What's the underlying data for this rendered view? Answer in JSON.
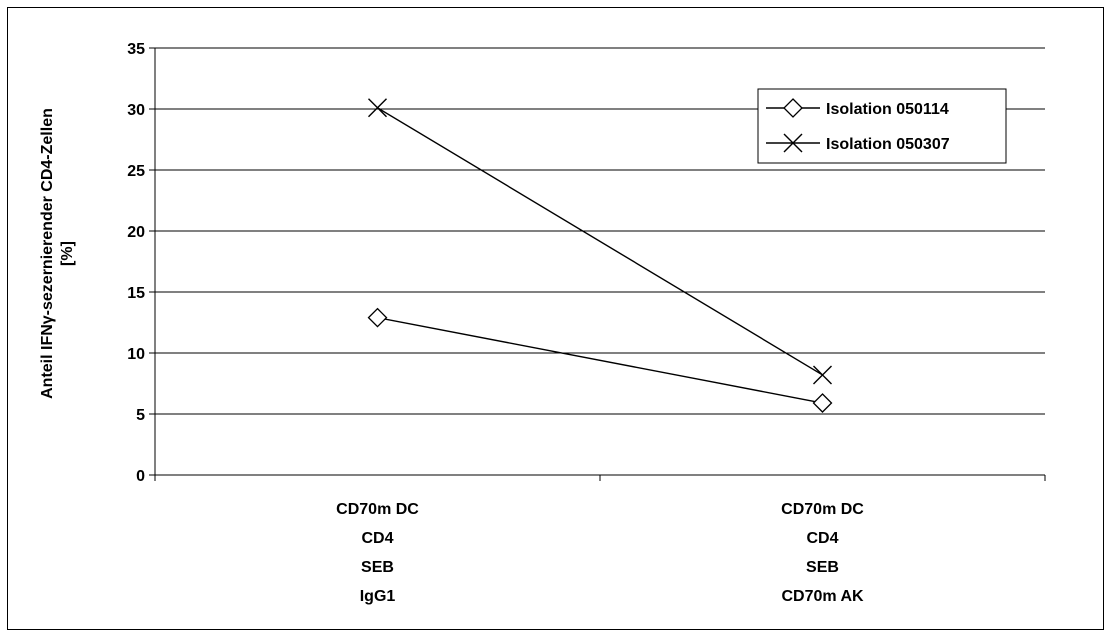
{
  "chart_data": {
    "type": "line",
    "categories": [
      [
        "CD70m DC",
        "CD4",
        "SEB",
        "IgG1"
      ],
      [
        "CD70m DC",
        "CD4",
        "SEB",
        "CD70m AK"
      ]
    ],
    "series": [
      {
        "name": "Isolation 050114",
        "marker": "diamond",
        "values": [
          12.9,
          5.9
        ]
      },
      {
        "name": "Isolation 050307",
        "marker": "x",
        "values": [
          30.1,
          8.2
        ]
      }
    ],
    "title": "",
    "xlabel": "",
    "ylabel": [
      "Anteil IFNγ-sezernierender CD4-Zellen",
      "[%]"
    ],
    "ylim": [
      0,
      35
    ],
    "yticks": [
      0,
      5,
      10,
      15,
      20,
      25,
      30,
      35
    ],
    "grid": true,
    "legend_position": "top-right",
    "colors": {
      "line": "#000000",
      "grid": "#000000",
      "background": "#ffffff"
    }
  }
}
